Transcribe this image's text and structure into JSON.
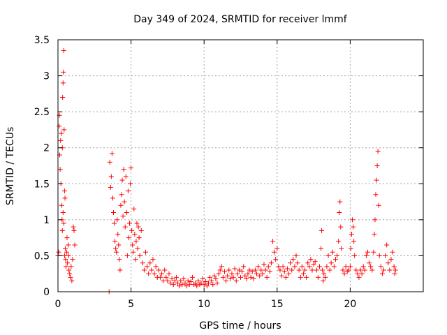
{
  "chart_data": {
    "type": "scatter",
    "title": "Day 349 of 2024, SRMTID for receiver lmmf",
    "xlabel": "GPS time / hours",
    "ylabel": "SRMTID / TECUs",
    "xlim": [
      0,
      25
    ],
    "ylim": [
      0,
      3.5
    ],
    "xticks": [
      0,
      5,
      10,
      15,
      20
    ],
    "yticks": [
      0,
      0.5,
      1,
      1.5,
      2,
      2.5,
      3,
      3.5
    ],
    "xtick_labels": [
      "0",
      "5",
      "10",
      "15",
      "20"
    ],
    "ytick_labels": [
      "0",
      "0.5",
      "1",
      "1.5",
      "2",
      "2.5",
      "3",
      "3.5"
    ],
    "grid": true,
    "marker": "+",
    "color": "#ff0000",
    "series": [
      {
        "name": "SRMTID",
        "points": [
          [
            0.0,
            0.5
          ],
          [
            0.05,
            0.55
          ],
          [
            0.08,
            2.3
          ],
          [
            0.1,
            2.45
          ],
          [
            0.12,
            1.9
          ],
          [
            0.15,
            1.7
          ],
          [
            0.18,
            2.1
          ],
          [
            0.2,
            1.5
          ],
          [
            0.22,
            2.2
          ],
          [
            0.25,
            1.2
          ],
          [
            0.28,
            1.0
          ],
          [
            0.3,
            2.0
          ],
          [
            0.32,
            2.7
          ],
          [
            0.35,
            2.9
          ],
          [
            0.37,
            3.05
          ],
          [
            0.4,
            3.35
          ],
          [
            0.42,
            2.25
          ],
          [
            0.45,
            1.4
          ],
          [
            0.48,
            1.3
          ],
          [
            0.5,
            0.6
          ],
          [
            0.52,
            0.45
          ],
          [
            0.55,
            0.35
          ],
          [
            0.6,
            0.55
          ],
          [
            0.62,
            0.75
          ],
          [
            0.65,
            0.4
          ],
          [
            0.7,
            0.65
          ],
          [
            0.72,
            0.5
          ],
          [
            0.75,
            0.3
          ],
          [
            0.8,
            0.25
          ],
          [
            0.85,
            0.2
          ],
          [
            0.9,
            0.35
          ],
          [
            0.95,
            0.15
          ],
          [
            1.0,
            0.45
          ],
          [
            1.05,
            0.9
          ],
          [
            1.1,
            0.85
          ],
          [
            1.15,
            0.65
          ],
          [
            0.3,
            0.85
          ],
          [
            0.35,
            1.1
          ],
          [
            0.4,
            0.95
          ],
          [
            0.45,
            0.5
          ],
          [
            3.5,
            0.0
          ],
          [
            3.55,
            1.8
          ],
          [
            3.6,
            1.45
          ],
          [
            3.65,
            1.6
          ],
          [
            3.7,
            1.92
          ],
          [
            3.75,
            1.3
          ],
          [
            3.8,
            1.1
          ],
          [
            3.85,
            0.95
          ],
          [
            3.9,
            0.7
          ],
          [
            3.95,
            0.6
          ],
          [
            4.0,
            0.55
          ],
          [
            4.05,
            1.0
          ],
          [
            4.1,
            0.8
          ],
          [
            4.15,
            0.65
          ],
          [
            4.2,
            0.45
          ],
          [
            4.25,
            0.3
          ],
          [
            4.3,
            1.2
          ],
          [
            4.35,
            1.35
          ],
          [
            4.4,
            1.55
          ],
          [
            4.45,
            1.05
          ],
          [
            4.5,
            1.7
          ],
          [
            4.55,
            1.25
          ],
          [
            4.6,
            0.9
          ],
          [
            4.65,
            1.6
          ],
          [
            4.7,
            1.1
          ],
          [
            4.75,
            0.5
          ],
          [
            4.8,
            1.4
          ],
          [
            4.85,
            0.75
          ],
          [
            4.9,
            0.95
          ],
          [
            4.95,
            1.5
          ],
          [
            5.0,
            1.72
          ],
          [
            5.05,
            0.85
          ],
          [
            5.1,
            0.65
          ],
          [
            5.15,
            0.55
          ],
          [
            5.2,
            1.15
          ],
          [
            5.25,
            0.8
          ],
          [
            5.3,
            0.45
          ],
          [
            5.35,
            0.7
          ],
          [
            5.4,
            0.95
          ],
          [
            5.45,
            0.6
          ],
          [
            5.5,
            0.9
          ],
          [
            5.55,
            0.75
          ],
          [
            5.6,
            0.5
          ],
          [
            5.7,
            0.85
          ],
          [
            5.8,
            0.4
          ],
          [
            5.9,
            0.3
          ],
          [
            6.0,
            0.55
          ],
          [
            6.1,
            0.35
          ],
          [
            6.2,
            0.25
          ],
          [
            6.3,
            0.4
          ],
          [
            6.4,
            0.3
          ],
          [
            6.5,
            0.45
          ],
          [
            6.6,
            0.25
          ],
          [
            6.7,
            0.35
          ],
          [
            6.8,
            0.2
          ],
          [
            6.9,
            0.3
          ],
          [
            7.0,
            0.2
          ],
          [
            7.1,
            0.25
          ],
          [
            7.2,
            0.15
          ],
          [
            7.3,
            0.3
          ],
          [
            7.4,
            0.2
          ],
          [
            7.5,
            0.15
          ],
          [
            7.6,
            0.25
          ],
          [
            7.7,
            0.12
          ],
          [
            7.8,
            0.18
          ],
          [
            7.9,
            0.1
          ],
          [
            8.0,
            0.15
          ],
          [
            8.1,
            0.2
          ],
          [
            8.2,
            0.12
          ],
          [
            8.3,
            0.08
          ],
          [
            8.4,
            0.15
          ],
          [
            8.5,
            0.1
          ],
          [
            8.6,
            0.18
          ],
          [
            8.7,
            0.12
          ],
          [
            8.8,
            0.08
          ],
          [
            8.9,
            0.15
          ],
          [
            9.0,
            0.1
          ],
          [
            9.1,
            0.14
          ],
          [
            9.2,
            0.2
          ],
          [
            9.3,
            0.1
          ],
          [
            9.4,
            0.12
          ],
          [
            9.5,
            0.08
          ],
          [
            9.6,
            0.15
          ],
          [
            9.7,
            0.1
          ],
          [
            9.8,
            0.12
          ],
          [
            9.9,
            0.18
          ],
          [
            10.0,
            0.1
          ],
          [
            10.1,
            0.14
          ],
          [
            10.2,
            0.08
          ],
          [
            10.3,
            0.12
          ],
          [
            10.4,
            0.2
          ],
          [
            10.5,
            0.15
          ],
          [
            10.6,
            0.1
          ],
          [
            10.7,
            0.22
          ],
          [
            10.8,
            0.18
          ],
          [
            10.9,
            0.12
          ],
          [
            11.0,
            0.25
          ],
          [
            11.1,
            0.3
          ],
          [
            11.2,
            0.35
          ],
          [
            11.3,
            0.2
          ],
          [
            11.4,
            0.28
          ],
          [
            11.5,
            0.15
          ],
          [
            11.6,
            0.22
          ],
          [
            11.7,
            0.3
          ],
          [
            11.8,
            0.18
          ],
          [
            11.9,
            0.25
          ],
          [
            12.0,
            0.2
          ],
          [
            12.1,
            0.32
          ],
          [
            12.2,
            0.15
          ],
          [
            12.3,
            0.25
          ],
          [
            12.4,
            0.3
          ],
          [
            12.5,
            0.2
          ],
          [
            12.6,
            0.28
          ],
          [
            12.7,
            0.35
          ],
          [
            12.8,
            0.22
          ],
          [
            12.9,
            0.18
          ],
          [
            13.0,
            0.25
          ],
          [
            13.1,
            0.3
          ],
          [
            13.2,
            0.2
          ],
          [
            13.3,
            0.28
          ],
          [
            13.4,
            0.18
          ],
          [
            13.5,
            0.3
          ],
          [
            13.6,
            0.25
          ],
          [
            13.7,
            0.35
          ],
          [
            13.8,
            0.22
          ],
          [
            13.9,
            0.3
          ],
          [
            14.0,
            0.25
          ],
          [
            14.1,
            0.38
          ],
          [
            14.2,
            0.3
          ],
          [
            14.3,
            0.2
          ],
          [
            14.4,
            0.35
          ],
          [
            14.5,
            0.28
          ],
          [
            14.6,
            0.4
          ],
          [
            14.7,
            0.7
          ],
          [
            14.8,
            0.55
          ],
          [
            14.9,
            0.45
          ],
          [
            15.0,
            0.6
          ],
          [
            15.1,
            0.35
          ],
          [
            15.2,
            0.3
          ],
          [
            15.3,
            0.22
          ],
          [
            15.4,
            0.35
          ],
          [
            15.5,
            0.28
          ],
          [
            15.6,
            0.2
          ],
          [
            15.7,
            0.32
          ],
          [
            15.8,
            0.25
          ],
          [
            15.9,
            0.4
          ],
          [
            16.0,
            0.3
          ],
          [
            16.1,
            0.45
          ],
          [
            16.2,
            0.35
          ],
          [
            16.3,
            0.5
          ],
          [
            16.4,
            0.4
          ],
          [
            16.5,
            0.3
          ],
          [
            16.6,
            0.2
          ],
          [
            16.7,
            0.35
          ],
          [
            16.8,
            0.25
          ],
          [
            16.9,
            0.3
          ],
          [
            17.0,
            0.2
          ],
          [
            17.1,
            0.4
          ],
          [
            17.2,
            0.35
          ],
          [
            17.3,
            0.45
          ],
          [
            17.4,
            0.3
          ],
          [
            17.5,
            0.38
          ],
          [
            17.6,
            0.42
          ],
          [
            17.7,
            0.3
          ],
          [
            17.8,
            0.2
          ],
          [
            17.9,
            0.35
          ],
          [
            18.0,
            0.6
          ],
          [
            18.05,
            0.85
          ],
          [
            18.1,
            0.3
          ],
          [
            18.15,
            0.15
          ],
          [
            18.2,
            0.25
          ],
          [
            18.3,
            0.2
          ],
          [
            18.4,
            0.35
          ],
          [
            18.5,
            0.5
          ],
          [
            18.6,
            0.3
          ],
          [
            18.7,
            0.4
          ],
          [
            18.8,
            0.55
          ],
          [
            18.9,
            0.35
          ],
          [
            19.0,
            0.45
          ],
          [
            19.1,
            0.5
          ],
          [
            19.2,
            0.7
          ],
          [
            19.25,
            1.1
          ],
          [
            19.3,
            1.25
          ],
          [
            19.35,
            0.9
          ],
          [
            19.4,
            0.6
          ],
          [
            19.5,
            0.3
          ],
          [
            19.6,
            0.25
          ],
          [
            19.7,
            0.35
          ],
          [
            19.8,
            0.28
          ],
          [
            19.9,
            0.3
          ],
          [
            20.0,
            0.35
          ],
          [
            20.05,
            0.6
          ],
          [
            20.1,
            0.8
          ],
          [
            20.15,
            1.0
          ],
          [
            20.2,
            0.9
          ],
          [
            20.25,
            0.7
          ],
          [
            20.3,
            0.5
          ],
          [
            20.4,
            0.3
          ],
          [
            20.5,
            0.25
          ],
          [
            20.6,
            0.2
          ],
          [
            20.7,
            0.3
          ],
          [
            20.8,
            0.25
          ],
          [
            20.9,
            0.35
          ],
          [
            21.0,
            0.3
          ],
          [
            21.1,
            0.5
          ],
          [
            21.2,
            0.55
          ],
          [
            21.3,
            0.4
          ],
          [
            21.4,
            0.35
          ],
          [
            21.5,
            0.3
          ],
          [
            21.6,
            0.55
          ],
          [
            21.65,
            0.8
          ],
          [
            21.7,
            1.0
          ],
          [
            21.75,
            1.35
          ],
          [
            21.8,
            1.55
          ],
          [
            21.85,
            1.75
          ],
          [
            21.9,
            1.95
          ],
          [
            21.95,
            1.2
          ],
          [
            22.0,
            0.5
          ],
          [
            22.1,
            0.35
          ],
          [
            22.2,
            0.25
          ],
          [
            22.3,
            0.3
          ],
          [
            22.4,
            0.5
          ],
          [
            22.5,
            0.65
          ],
          [
            22.6,
            0.4
          ],
          [
            22.7,
            0.3
          ],
          [
            22.8,
            0.45
          ],
          [
            22.9,
            0.55
          ],
          [
            23.0,
            0.35
          ],
          [
            23.05,
            0.25
          ],
          [
            23.1,
            0.3
          ]
        ]
      }
    ]
  }
}
